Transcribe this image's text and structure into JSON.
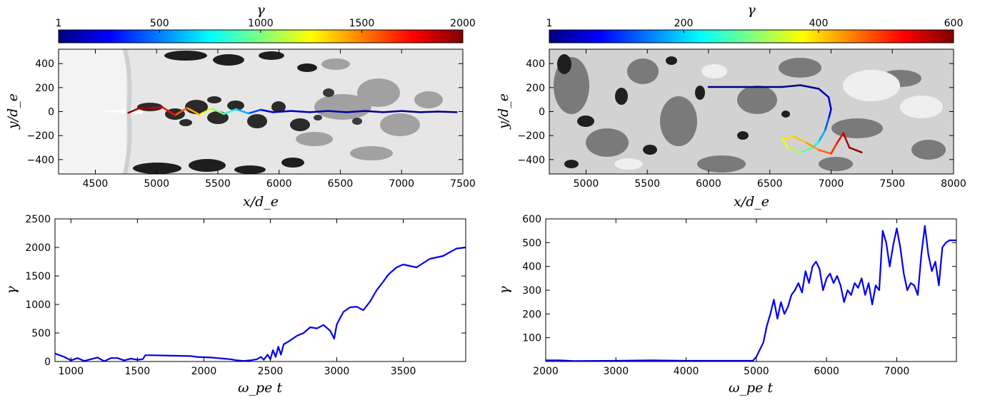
{
  "chart_data": [
    {
      "id": "top-left",
      "type": "heatmap",
      "xlim": [
        4200,
        7500
      ],
      "ylim": [
        -520,
        520
      ],
      "xticks": [
        "4500",
        "5000",
        "5500",
        "6000",
        "6500",
        "7000",
        "7500"
      ],
      "yticks": [
        "400",
        "200",
        "0",
        "−200",
        "−400"
      ],
      "xlabel": "x/d_e",
      "ylabel": "y/d_e",
      "colorbar": {
        "label": "γ",
        "ticks": [
          "1",
          "500",
          "1000",
          "1500",
          "2000"
        ],
        "range": [
          1,
          2000
        ],
        "colormap": "jet"
      },
      "trajectory": {
        "name": "particle-trajectory",
        "points": [
          [
            7450,
            -5
          ],
          [
            7300,
            0
          ],
          [
            7150,
            -5
          ],
          [
            7000,
            5
          ],
          [
            6850,
            -5
          ],
          [
            6700,
            5
          ],
          [
            6550,
            -5
          ],
          [
            6400,
            5
          ],
          [
            6250,
            -5
          ],
          [
            6100,
            5
          ],
          [
            5950,
            -5
          ],
          [
            5850,
            15
          ],
          [
            5750,
            -15
          ],
          [
            5650,
            20
          ],
          [
            5550,
            -20
          ],
          [
            5450,
            25
          ],
          [
            5350,
            -25
          ],
          [
            5250,
            30
          ],
          [
            5150,
            -30
          ],
          [
            5050,
            35
          ],
          [
            4950,
            30
          ],
          [
            4850,
            25
          ],
          [
            4770,
            -10
          ]
        ],
        "gamma": [
          10,
          15,
          20,
          30,
          40,
          50,
          60,
          80,
          100,
          120,
          150,
          250,
          500,
          700,
          900,
          1100,
          1300,
          1500,
          1650,
          1800,
          1900,
          1950,
          2000
        ]
      }
    },
    {
      "id": "top-right",
      "type": "heatmap",
      "xlim": [
        4700,
        8000
      ],
      "ylim": [
        -520,
        520
      ],
      "xticks": [
        "5000",
        "5500",
        "6000",
        "6500",
        "7000",
        "7500",
        "8000"
      ],
      "yticks": [
        "400",
        "200",
        "0",
        "−200",
        "−400"
      ],
      "xlabel": "x/d_e",
      "ylabel": "y/d_e",
      "colorbar": {
        "label": "γ",
        "ticks": [
          "1",
          "200",
          "400",
          "600"
        ],
        "range": [
          1,
          600
        ],
        "colormap": "jet"
      },
      "trajectory": {
        "name": "particle-trajectory",
        "points": [
          [
            6000,
            205
          ],
          [
            6300,
            205
          ],
          [
            6600,
            205
          ],
          [
            6750,
            220
          ],
          [
            6900,
            190
          ],
          [
            6980,
            120
          ],
          [
            7000,
            20
          ],
          [
            6980,
            -60
          ],
          [
            6950,
            -160
          ],
          [
            6900,
            -250
          ],
          [
            6850,
            -300
          ],
          [
            6750,
            -340
          ],
          [
            6650,
            -300
          ],
          [
            6600,
            -230
          ],
          [
            6700,
            -210
          ],
          [
            6800,
            -260
          ],
          [
            6900,
            -320
          ],
          [
            7000,
            -350
          ],
          [
            7050,
            -260
          ],
          [
            7100,
            -180
          ],
          [
            7150,
            -300
          ],
          [
            7250,
            -340
          ]
        ],
        "gamma": [
          3,
          5,
          10,
          15,
          20,
          30,
          50,
          100,
          150,
          200,
          250,
          300,
          350,
          380,
          400,
          420,
          450,
          480,
          520,
          550,
          580,
          600
        ]
      }
    },
    {
      "id": "bottom-left",
      "type": "line",
      "xlim": [
        880,
        3970
      ],
      "ylim": [
        0,
        2500
      ],
      "xticks": [
        "1000",
        "1500",
        "2000",
        "2500",
        "3000",
        "3500"
      ],
      "yticks": [
        "0",
        "500",
        "1000",
        "1500",
        "2000",
        "2500"
      ],
      "xlabel": "ω_pe t",
      "ylabel": "γ",
      "series": [
        {
          "x": [
            880,
            950,
            1000,
            1050,
            1100,
            1150,
            1200,
            1250,
            1300,
            1350,
            1400,
            1450,
            1500,
            1540,
            1560,
            1600,
            1700,
            1800,
            1900,
            1950,
            2000,
            2050,
            2100,
            2150,
            2200,
            2250,
            2300,
            2350,
            2400,
            2430,
            2450,
            2480,
            2500,
            2520,
            2540,
            2560,
            2580,
            2600,
            2650,
            2700,
            2750,
            2800,
            2850,
            2900,
            2950,
            2980,
            3000,
            3050,
            3100,
            3150,
            3200,
            3250,
            3300,
            3350,
            3380,
            3400,
            3450,
            3500,
            3600,
            3700,
            3800,
            3900,
            3970
          ],
          "y": [
            140,
            80,
            20,
            60,
            10,
            40,
            70,
            5,
            60,
            60,
            20,
            50,
            30,
            40,
            110,
            110,
            105,
            100,
            95,
            80,
            75,
            70,
            60,
            50,
            40,
            20,
            10,
            20,
            40,
            80,
            30,
            120,
            40,
            200,
            80,
            260,
            120,
            300,
            370,
            450,
            500,
            600,
            580,
            640,
            540,
            400,
            650,
            870,
            950,
            960,
            900,
            1050,
            1250,
            1400,
            1500,
            1550,
            1650,
            1700,
            1650,
            1800,
            1850,
            1980,
            2000
          ]
        }
      ]
    },
    {
      "id": "bottom-right",
      "type": "line",
      "xlim": [
        2000,
        7850
      ],
      "ylim": [
        0,
        600
      ],
      "xticks": [
        "2000",
        "3000",
        "4000",
        "5000",
        "6000",
        "7000"
      ],
      "yticks": [
        "100",
        "200",
        "300",
        "400",
        "500",
        "600"
      ],
      "xlabel": "ω_pe t",
      "ylabel": "γ",
      "series": [
        {
          "x": [
            2000,
            2200,
            2400,
            3000,
            3500,
            4000,
            4500,
            4950,
            5000,
            5050,
            5100,
            5150,
            5200,
            5250,
            5300,
            5350,
            5400,
            5450,
            5500,
            5550,
            5600,
            5650,
            5700,
            5750,
            5800,
            5850,
            5900,
            5950,
            6000,
            6050,
            6100,
            6150,
            6200,
            6250,
            6300,
            6350,
            6400,
            6450,
            6500,
            6550,
            6600,
            6650,
            6700,
            6750,
            6800,
            6850,
            6900,
            6950,
            7000,
            7050,
            7100,
            7150,
            7200,
            7250,
            7300,
            7350,
            7400,
            7450,
            7500,
            7550,
            7600,
            7650,
            7700,
            7750,
            7850
          ],
          "y": [
            5,
            5,
            2,
            3,
            5,
            3,
            3,
            3,
            20,
            50,
            80,
            150,
            200,
            260,
            180,
            250,
            200,
            230,
            280,
            300,
            330,
            290,
            380,
            330,
            400,
            420,
            390,
            300,
            350,
            370,
            330,
            360,
            320,
            250,
            300,
            280,
            330,
            310,
            350,
            280,
            330,
            240,
            320,
            300,
            550,
            500,
            400,
            490,
            560,
            480,
            370,
            300,
            330,
            320,
            280,
            450,
            570,
            450,
            380,
            420,
            320,
            480,
            500,
            510,
            510
          ]
        }
      ]
    }
  ]
}
